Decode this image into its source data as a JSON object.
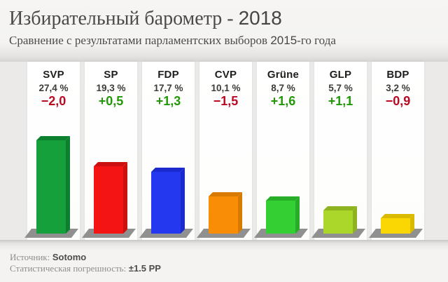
{
  "header": {
    "title_text": "Избирательный барометр - ",
    "title_year": "2018",
    "subtitle_pre": "Сравнение с результатами парламентских выборов ",
    "subtitle_year": "2015",
    "subtitle_post": "-го года"
  },
  "chart_data": {
    "type": "bar",
    "title": "Избирательный барометр - 2018",
    "subtitle": "Сравнение с результатами парламентских выборов 2015-го года",
    "unit": "%",
    "categories": [
      "SVP",
      "SP",
      "FDP",
      "CVP",
      "Grüne",
      "GLP",
      "BDP"
    ],
    "values": [
      27.4,
      19.3,
      17.7,
      10.1,
      8.7,
      5.7,
      3.2
    ],
    "value_labels": [
      "27,4 %",
      "19,3 %",
      "17,7 %",
      "10,1 %",
      "8,7 %",
      "5,7 %",
      "3,2 %"
    ],
    "changes": [
      -2.0,
      0.5,
      1.3,
      -1.5,
      1.6,
      1.1,
      -0.9
    ],
    "change_labels": [
      "−2,0",
      "+0,5",
      "+1,3",
      "−1,5",
      "+1,6",
      "+1,1",
      "−0,9"
    ],
    "bar_colors": [
      "#16a03c",
      "#f51414",
      "#2438f0",
      "#f98d05",
      "#33cf33",
      "#abd62a",
      "#fad703"
    ],
    "bar_shade_colors": [
      "#0d8030",
      "#cc1010",
      "#1a2acc",
      "#d97a00",
      "#27ad27",
      "#8db41f",
      "#d9ba00"
    ],
    "positive_color": "#219906",
    "negative_color": "#ba0a22",
    "platform_color": "#909090",
    "ylim": [
      0,
      30
    ],
    "grid": false,
    "legend": false,
    "style": "3d-bars-on-gray-pedestals"
  },
  "footer": {
    "source_label": "Источник:",
    "source_value": "Sotomo",
    "error_label": "Статистическая погрешность:",
    "error_value": "±1.5 PP"
  }
}
